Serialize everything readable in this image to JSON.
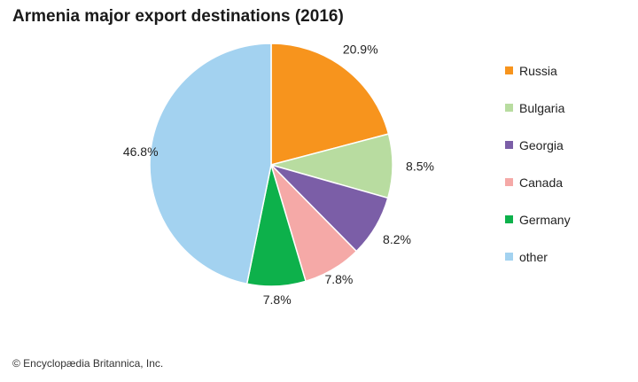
{
  "chart_data": {
    "type": "pie",
    "title": "Armenia major export destinations (2016)",
    "slices": [
      {
        "label": "Russia",
        "value": 20.9,
        "display": "20.9%",
        "color": "#f7941d"
      },
      {
        "label": "Bulgaria",
        "value": 8.5,
        "display": "8.5%",
        "color": "#b8dca0"
      },
      {
        "label": "Georgia",
        "value": 8.2,
        "display": "8.2%",
        "color": "#7b5ea7"
      },
      {
        "label": "Canada",
        "value": 7.8,
        "display": "7.8%",
        "color": "#f5a9a7"
      },
      {
        "label": "Germany",
        "value": 7.8,
        "display": "7.8%",
        "color": "#0db14b"
      },
      {
        "label": "other",
        "value": 46.8,
        "display": "46.8%",
        "color": "#a3d2f0"
      }
    ],
    "start_angle": "12 o'clock",
    "direction": "clockwise",
    "legend_position": "right"
  },
  "credit": "© Encyclopædia Britannica, Inc."
}
